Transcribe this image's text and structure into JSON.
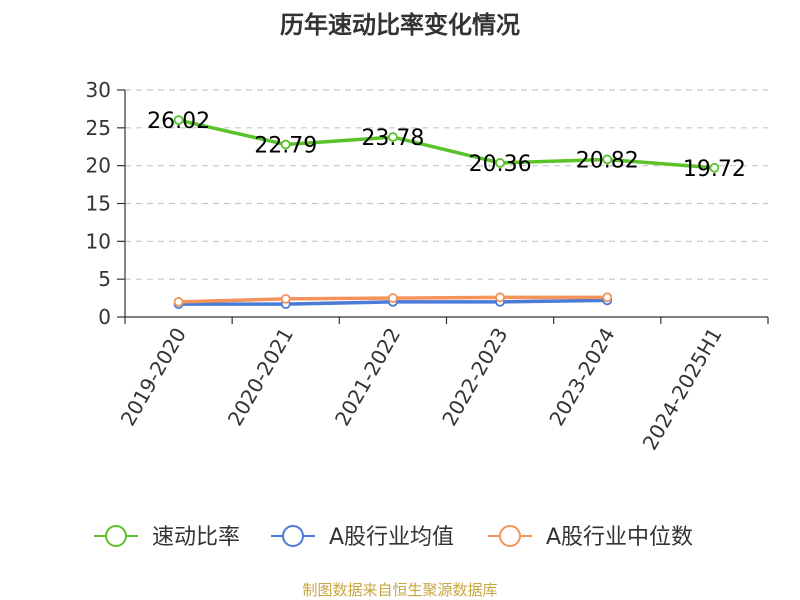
{
  "chart_data": {
    "type": "line",
    "title": "历年速动比率变化情况",
    "categories": [
      "2019-2020",
      "2020-2021",
      "2021-2022",
      "2022-2023",
      "2023-2024",
      "2024-2025H1"
    ],
    "ylim": [
      0,
      30
    ],
    "yticks": [
      0,
      5,
      10,
      15,
      20,
      25,
      30
    ],
    "grid": true,
    "legend_position": "bottom",
    "series": [
      {
        "name": "速动比率",
        "color": "#5cc22a",
        "values": [
          26.02,
          22.79,
          23.78,
          20.36,
          20.82,
          19.72
        ],
        "labels": [
          "26.02",
          "22.79",
          "23.78",
          "20.36",
          "20.82",
          "19.72"
        ]
      },
      {
        "name": "A股行业均值",
        "color": "#4a7bd6",
        "values": [
          1.7,
          1.7,
          2.0,
          2.0,
          2.2,
          null
        ]
      },
      {
        "name": "A股行业中位数",
        "color": "#f4935a",
        "values": [
          2.0,
          2.4,
          2.5,
          2.6,
          2.6,
          null
        ]
      }
    ],
    "source": "制图数据来自恒生聚源数据库"
  }
}
